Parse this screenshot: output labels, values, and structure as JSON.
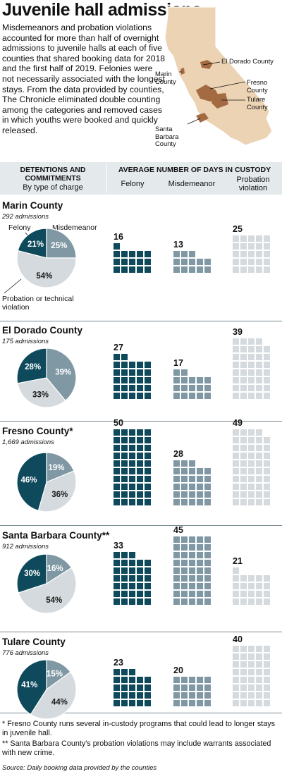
{
  "title": "Juvenile hall admissions",
  "intro": "Misdemeanors and probation violations accounted for more than half of overnight admissions to juvenile halls at each of five counties that shared booking data for 2018 and the first half of 2019. Felonies were not necessarily associated with the longest stays. From the data provided by counties, The Chronicle eliminated double counting among the categories and removed cases in which youths were booked and quickly released.",
  "map_labels": {
    "el_dorado": "El Dorado County",
    "marin": "Marin County",
    "fresno": "Fresno County",
    "tulare": "Tulare County",
    "santa_barbara": "Santa Barbara County"
  },
  "header": {
    "left_title": "DETENTIONS AND COMMITMENTS",
    "left_sub": "By type of charge",
    "right_title": "AVERAGE NUMBER OF DAYS IN CUSTODY",
    "col_felony": "Felony",
    "col_misdemeanor": "Misdemeanor",
    "col_probation": "Probation violation"
  },
  "pie_legend": {
    "felony": "Felony",
    "misdemeanor": "Misdemeanor",
    "probation": "Probation or technical violation"
  },
  "colors": {
    "felony": "#0e4a5c",
    "misdemeanor": "#7f98a4",
    "probation": "#d4dadd",
    "county_fill": "#ecd3b4",
    "county_highlight": "#a46a42"
  },
  "chart_data": [
    {
      "type": "pie",
      "county": "Marin County",
      "admissions": "292 admissions",
      "categories": [
        "Felony",
        "Misdemeanor",
        "Probation or technical violation"
      ],
      "values": [
        21,
        25,
        54
      ],
      "labels": [
        "21%",
        "25%",
        "54%"
      ]
    },
    {
      "type": "pie",
      "county": "El Dorado County",
      "admissions": "175 admissions",
      "categories": [
        "Felony",
        "Misdemeanor",
        "Probation or technical violation"
      ],
      "values": [
        28,
        39,
        33
      ],
      "labels": [
        "28%",
        "39%",
        "33%"
      ]
    },
    {
      "type": "pie",
      "county": "Fresno County*",
      "admissions": "1,669 admissions",
      "categories": [
        "Felony",
        "Misdemeanor",
        "Probation or technical violation"
      ],
      "values": [
        46,
        19,
        36
      ],
      "labels": [
        "46%",
        "19%",
        "36%"
      ]
    },
    {
      "type": "pie",
      "county": "Santa Barbara County**",
      "admissions": "912 admissions",
      "categories": [
        "Felony",
        "Misdemeanor",
        "Probation or technical violation"
      ],
      "values": [
        30,
        16,
        54
      ],
      "labels": [
        "30%",
        "16%",
        "54%"
      ]
    },
    {
      "type": "pie",
      "county": "Tulare County",
      "admissions": "776 admissions",
      "categories": [
        "Felony",
        "Misdemeanor",
        "Probation or technical violation"
      ],
      "values": [
        41,
        15,
        44
      ],
      "labels": [
        "41%",
        "15%",
        "44%"
      ]
    },
    {
      "type": "bar",
      "title": "Average number of days in custody",
      "categories": [
        "Felony",
        "Misdemeanor",
        "Probation violation"
      ],
      "series": [
        {
          "name": "Marin County",
          "values": [
            16,
            13,
            25
          ]
        },
        {
          "name": "El Dorado County",
          "values": [
            27,
            17,
            39
          ]
        },
        {
          "name": "Fresno County*",
          "values": [
            50,
            28,
            49
          ]
        },
        {
          "name": "Santa Barbara County**",
          "values": [
            33,
            45,
            21
          ]
        },
        {
          "name": "Tulare County",
          "values": [
            23,
            20,
            40
          ]
        }
      ]
    }
  ],
  "footnotes": {
    "f1": "* Fresno County runs several in-custody programs that could lead to longer stays in juvenile hall.",
    "f2": "** Santa Barbara County's probation violations may include warrants associated with new crime.",
    "source": "Source: Daily booking data provided by the counties"
  }
}
